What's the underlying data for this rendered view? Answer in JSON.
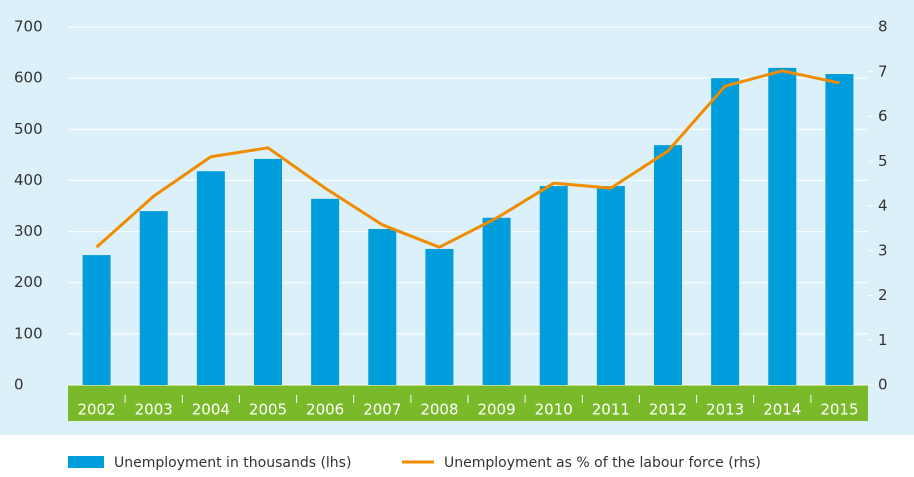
{
  "chart_data": {
    "type": "bar_line",
    "categories": [
      "2002",
      "2003",
      "2004",
      "2005",
      "2006",
      "2007",
      "2008",
      "2009",
      "2010",
      "2011",
      "2012",
      "2013",
      "2014",
      "2015"
    ],
    "series": [
      {
        "name": "Unemployment in thousands (lhs)",
        "type": "bar",
        "color": "#009ddc",
        "values": [
          254,
          340,
          418,
          442,
          364,
          305,
          266,
          327,
          389,
          389,
          469,
          600,
          620,
          608
        ]
      },
      {
        "name": "Unemployment as % of the labour force (rhs)",
        "type": "line",
        "axis": "y2",
        "color": "#f08c00",
        "values": [
          3.08,
          4.22,
          5.1,
          5.3,
          4.4,
          3.58,
          3.08,
          3.73,
          4.51,
          4.4,
          5.23,
          6.68,
          7.02,
          6.75
        ]
      }
    ],
    "ylim": [
      0,
      700
    ],
    "yticks": [
      0,
      100,
      200,
      300,
      400,
      500,
      600,
      700
    ],
    "y2lim": [
      0,
      8
    ],
    "y2ticks": [
      0,
      1,
      2,
      3,
      4,
      5,
      6,
      7,
      8
    ],
    "grid": true,
    "legend": "bottom"
  }
}
